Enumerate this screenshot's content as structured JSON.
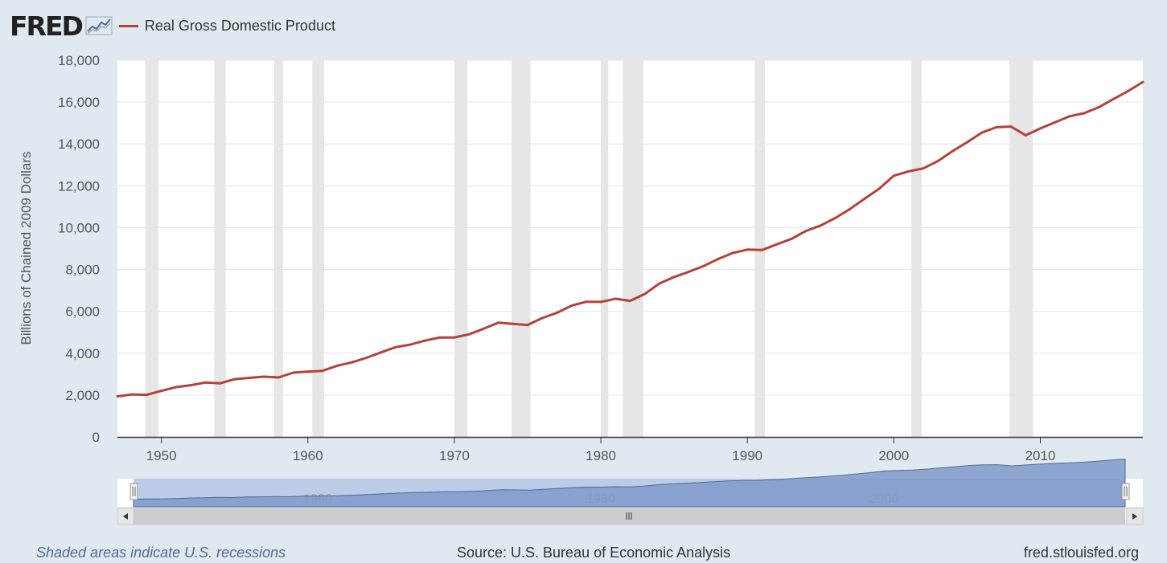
{
  "header": {
    "logo": "FRED",
    "legend_label": "Real Gross Domestic Product"
  },
  "chart_data": {
    "type": "line",
    "title": "",
    "series": [
      {
        "name": "Real Gross Domestic Product",
        "color": "#b4423a",
        "x": [
          "1947",
          "1948",
          "1949",
          "1950",
          "1951",
          "1952",
          "1953",
          "1954",
          "1955",
          "1956",
          "1957",
          "1958",
          "1959",
          "1960",
          "1961",
          "1962",
          "1963",
          "1964",
          "1965",
          "1966",
          "1967",
          "1968",
          "1969",
          "1970",
          "1971",
          "1972",
          "1973",
          "1974",
          "1975",
          "1976",
          "1977",
          "1978",
          "1979",
          "1980",
          "1981",
          "1982",
          "1983",
          "1984",
          "1985",
          "1986",
          "1987",
          "1988",
          "1989",
          "1990",
          "1991",
          "1992",
          "1993",
          "1994",
          "1995",
          "1996",
          "1997",
          "1998",
          "1999",
          "2000",
          "2001",
          "2002",
          "2003",
          "2004",
          "2005",
          "2006",
          "2007",
          "2008",
          "2009",
          "2010",
          "2011",
          "2012",
          "2013",
          "2014",
          "2015",
          "2016",
          "2017"
        ],
        "values": [
          1940,
          2030,
          2010,
          2200,
          2380,
          2470,
          2600,
          2560,
          2760,
          2820,
          2880,
          2840,
          3070,
          3120,
          3160,
          3400,
          3560,
          3780,
          4040,
          4290,
          4410,
          4600,
          4750,
          4750,
          4900,
          5170,
          5460,
          5400,
          5350,
          5680,
          5930,
          6270,
          6460,
          6450,
          6600,
          6500,
          6830,
          7330,
          7640,
          7890,
          8160,
          8500,
          8790,
          8950,
          8930,
          9200,
          9460,
          9840,
          10100,
          10460,
          10890,
          11380,
          11860,
          12480,
          12690,
          12830,
          13180,
          13650,
          14080,
          14540,
          14800,
          14830,
          14410,
          14740,
          15030,
          15320,
          15470,
          15760,
          16150,
          16530,
          16960
        ]
      }
    ],
    "ylabel": "Billions of Chained 2009 Dollars",
    "xlabel": "",
    "ylim": [
      0,
      18000
    ],
    "yticks": [
      "0",
      "2,000",
      "4,000",
      "6,000",
      "8,000",
      "10,000",
      "12,000",
      "14,000",
      "16,000",
      "18,000"
    ],
    "xticks": [
      "1950",
      "1960",
      "1970",
      "1980",
      "1990",
      "2000",
      "2010"
    ],
    "xlim": [
      "1947",
      "2017"
    ],
    "grid": true,
    "shaded_recessions": [
      [
        "1948.9",
        "1949.8"
      ],
      [
        "1953.6",
        "1954.4"
      ],
      [
        "1957.7",
        "1958.3"
      ],
      [
        "1960.3",
        "1961.1"
      ],
      [
        "1970.0",
        "1970.9"
      ],
      [
        "1973.9",
        "1975.2"
      ],
      [
        "1980.0",
        "1980.5"
      ],
      [
        "1981.5",
        "1982.9"
      ],
      [
        "1990.5",
        "1991.2"
      ],
      [
        "2001.2",
        "2001.9"
      ],
      [
        "2007.9",
        "2009.5"
      ]
    ],
    "navigator_labels": [
      "1960",
      "1980",
      "2000"
    ]
  },
  "footer": {
    "note": "Shaded areas indicate U.S. recessions",
    "source": "Source: U.S. Bureau of Economic Analysis",
    "site": "fred.stlouisfed.org"
  }
}
